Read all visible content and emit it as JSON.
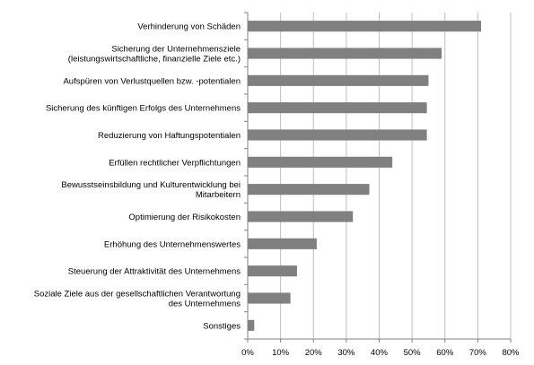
{
  "chart_data": {
    "type": "bar",
    "orientation": "horizontal",
    "categories": [
      [
        "Verhinderung von Schäden"
      ],
      [
        "Sicherung der Unternehmensziele",
        "(leistungswirtschaftliche, finanzielle Ziele etc.)"
      ],
      [
        "Aufspüren von Verlustquellen bzw. -potentialen"
      ],
      [
        "Sicherung des künftigen Erfolgs des Unternehmens"
      ],
      [
        "Reduzierung von Haftungspotentialen"
      ],
      [
        "Erfüllen rechtlicher Verpflichtungen"
      ],
      [
        "Bewusstseinsbildung und Kulturentwicklung bei",
        "Mitarbeitern"
      ],
      [
        "Optimierung der Risikokosten"
      ],
      [
        "Erhöhung des Unternehmenswertes"
      ],
      [
        "Steuerung der Attraktivität des Unternehmens"
      ],
      [
        "Soziale Ziele aus der gesellschaftlichen Verantwortung",
        "des Unternehmens"
      ],
      [
        "Sonstiges"
      ]
    ],
    "values": [
      71,
      59,
      55,
      54.5,
      54.5,
      44,
      37,
      32,
      21,
      15,
      13,
      2
    ],
    "xlim": [
      0,
      80
    ],
    "ticks": [
      0,
      10,
      20,
      30,
      40,
      50,
      60,
      70,
      80
    ],
    "tick_labels": [
      "0%",
      "10%",
      "20%",
      "30%",
      "40%",
      "50%",
      "60%",
      "70%",
      "80%"
    ],
    "grid": true,
    "bar_color": "#808080",
    "grid_color": "#bfbfbf",
    "axis_color": "#808080",
    "title": "",
    "xlabel": "",
    "ylabel": ""
  }
}
